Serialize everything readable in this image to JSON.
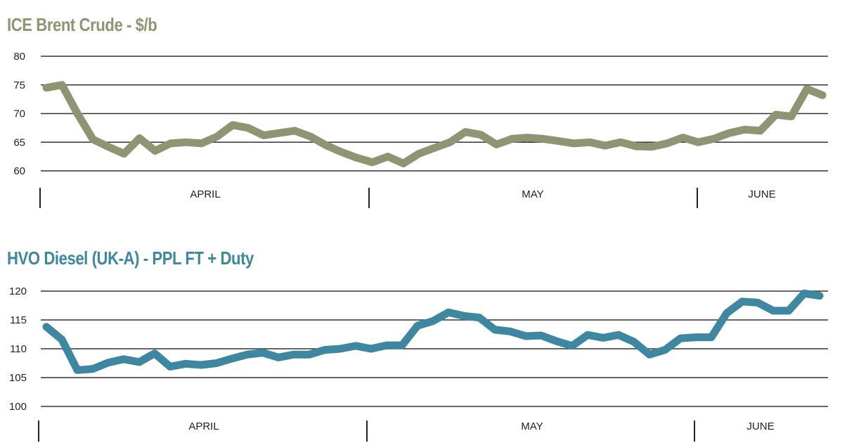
{
  "chart_data": [
    {
      "type": "line",
      "title": "ICE Brent Crude - $/b",
      "color": "#8f9473",
      "ylim": [
        60,
        80
      ],
      "yticks": [
        60,
        65,
        70,
        75,
        80
      ],
      "grid": true,
      "x_axis_labels": [
        "APRIL",
        "MAY",
        "JUNE"
      ],
      "series": [
        {
          "values": [
            74.5,
            75.0,
            70.0,
            65.5,
            64.2,
            63.0,
            65.7,
            63.5,
            64.8,
            65.0,
            64.8,
            66.0,
            68.0,
            67.5,
            66.2,
            66.6,
            67.0,
            66.0,
            64.5,
            63.3,
            62.3,
            61.5,
            62.5,
            61.3,
            63.0,
            64.0,
            65.0,
            66.8,
            66.3,
            64.6,
            65.6,
            65.8,
            65.6,
            65.2,
            64.8,
            65.0,
            64.4,
            65.0,
            64.3,
            64.2,
            64.8,
            65.8,
            65.0,
            65.6,
            66.6,
            67.2,
            67.0,
            69.8,
            69.5,
            74.3,
            73.2
          ]
        }
      ]
    },
    {
      "type": "line",
      "title": "HVO Diesel (UK-A) - PPL FT + Duty",
      "color": "#3d87a0",
      "ylim": [
        100,
        120
      ],
      "yticks": [
        100,
        105,
        110,
        115,
        120
      ],
      "grid": true,
      "x_axis_labels": [
        "APRIL",
        "MAY",
        "JUNE"
      ],
      "series": [
        {
          "values": [
            113.8,
            111.6,
            106.3,
            106.5,
            107.6,
            108.2,
            107.7,
            109.2,
            106.9,
            107.4,
            107.2,
            107.5,
            108.3,
            109.0,
            109.3,
            108.5,
            109.0,
            109.0,
            109.8,
            110.0,
            110.5,
            110.0,
            110.6,
            110.6,
            114.0,
            114.8,
            116.3,
            115.7,
            115.4,
            113.3,
            113.0,
            112.2,
            112.3,
            111.3,
            110.5,
            112.4,
            111.9,
            112.4,
            111.2,
            109.0,
            109.8,
            111.8,
            112.0,
            112.0,
            116.2,
            118.2,
            118.0,
            116.6,
            116.6,
            119.6,
            119.2
          ]
        }
      ]
    }
  ]
}
